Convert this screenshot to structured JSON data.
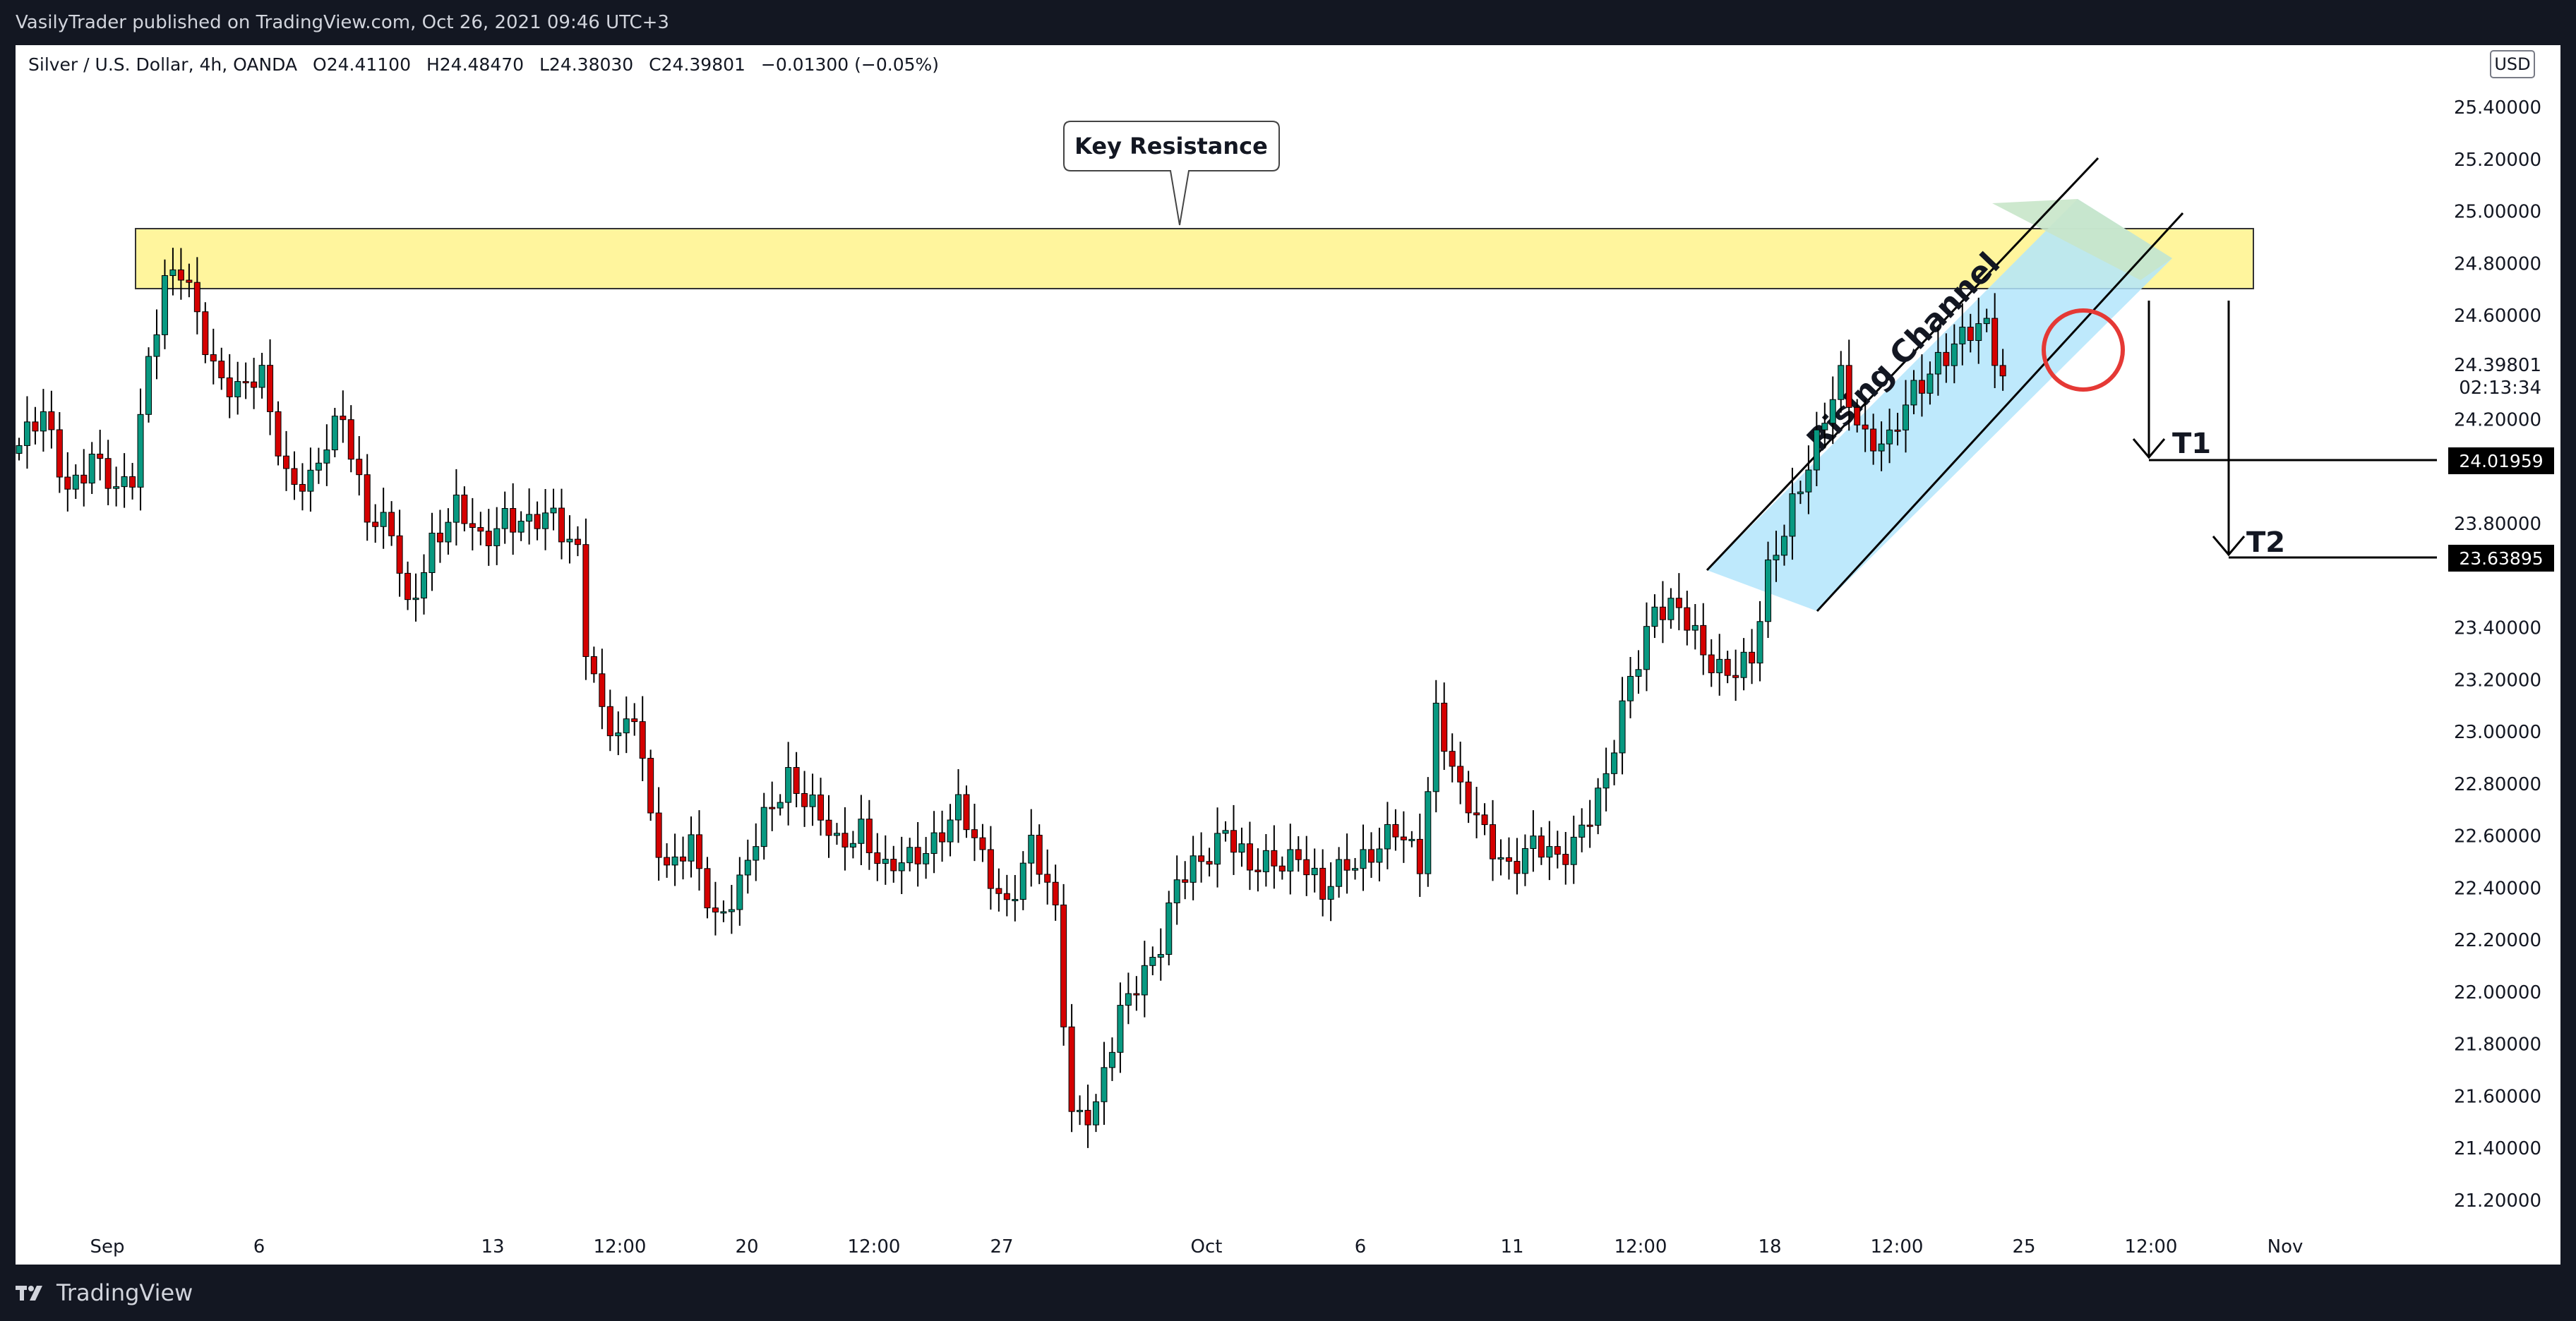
{
  "publish_line": "VasilyTrader published on TradingView.com, Oct 26, 2021 09:46 UTC+3",
  "footer_brand": "TradingView",
  "colors": {
    "up": "#089981",
    "down": "#d50000",
    "resistance_zone": "#fff59d",
    "channel_fill": "#b3e5fc",
    "target_fill": "#c8e6c9",
    "circle": "#e53935"
  },
  "chart_data": {
    "type": "candlestick",
    "title": "Silver / U.S. Dollar, 4h, OANDA",
    "ohlc_legend": {
      "open": "O24.41100",
      "high": "H24.48470",
      "low": "L24.38030",
      "close": "C24.39801",
      "change": "−0.01300 (−0.05%)"
    },
    "currency": "USD",
    "ylim": [
      21.1,
      25.6
    ],
    "y_ticks": [
      "25.40000",
      "25.20000",
      "25.00000",
      "24.80000",
      "24.60000",
      "24.20000",
      "23.80000",
      "23.40000",
      "23.20000",
      "23.00000",
      "22.80000",
      "22.60000",
      "22.40000",
      "22.20000",
      "22.00000",
      "21.80000",
      "21.60000",
      "21.40000",
      "21.20000"
    ],
    "x_ticks": [
      "Sep",
      "6",
      "13",
      "12:00",
      "20",
      "12:00",
      "27",
      "Oct",
      "6",
      "11",
      "12:00",
      "18",
      "12:00",
      "25",
      "12:00",
      "Nov"
    ],
    "last_price": "24.39801",
    "countdown": "02:13:34",
    "targets": [
      {
        "label": "T1",
        "price": "24.01959"
      },
      {
        "label": "T2",
        "price": "23.63895"
      }
    ],
    "annotations": {
      "resistance_label": "Key Resistance",
      "channel_label": "Rising Channel"
    },
    "resistance_zone": [
      24.68,
      24.92
    ],
    "channel": {
      "upper_start": [
        23.55,
        23.55
      ],
      "upper_end": [
        25.2,
        25.2
      ],
      "lower_start": [
        23.35,
        23.35
      ],
      "lower_end": [
        24.99,
        24.99
      ]
    },
    "waypoints": [
      [
        0,
        24.1
      ],
      [
        3,
        24.2
      ],
      [
        6,
        23.95
      ],
      [
        9,
        24.05
      ],
      [
        12,
        23.9
      ],
      [
        14,
        24.0
      ],
      [
        16,
        24.45
      ],
      [
        18,
        24.72
      ],
      [
        20,
        24.75
      ],
      [
        22,
        24.6
      ],
      [
        24,
        24.42
      ],
      [
        27,
        24.3
      ],
      [
        30,
        24.35
      ],
      [
        33,
        24.0
      ],
      [
        36,
        23.95
      ],
      [
        40,
        24.22
      ],
      [
        43,
        23.85
      ],
      [
        46,
        23.75
      ],
      [
        48,
        23.45
      ],
      [
        51,
        23.75
      ],
      [
        54,
        23.85
      ],
      [
        57,
        23.72
      ],
      [
        60,
        23.85
      ],
      [
        63,
        23.78
      ],
      [
        66,
        23.82
      ],
      [
        69,
        23.72
      ],
      [
        70,
        23.35
      ],
      [
        72,
        23.05
      ],
      [
        74,
        22.95
      ],
      [
        76,
        23.1
      ],
      [
        78,
        22.7
      ],
      [
        80,
        22.45
      ],
      [
        83,
        22.55
      ],
      [
        86,
        22.3
      ],
      [
        89,
        22.4
      ],
      [
        92,
        22.65
      ],
      [
        95,
        22.85
      ],
      [
        98,
        22.7
      ],
      [
        101,
        22.55
      ],
      [
        104,
        22.65
      ],
      [
        107,
        22.45
      ],
      [
        110,
        22.5
      ],
      [
        113,
        22.6
      ],
      [
        116,
        22.7
      ],
      [
        119,
        22.5
      ],
      [
        122,
        22.35
      ],
      [
        125,
        22.55
      ],
      [
        128,
        22.3
      ],
      [
        130,
        21.55
      ],
      [
        133,
        21.55
      ],
      [
        136,
        21.9
      ],
      [
        138,
        22.05
      ],
      [
        141,
        22.2
      ],
      [
        143,
        22.4
      ],
      [
        146,
        22.5
      ],
      [
        149,
        22.65
      ],
      [
        152,
        22.45
      ],
      [
        155,
        22.5
      ],
      [
        158,
        22.55
      ],
      [
        161,
        22.35
      ],
      [
        164,
        22.5
      ],
      [
        167,
        22.55
      ],
      [
        170,
        22.6
      ],
      [
        173,
        22.5
      ],
      [
        175,
        23.1
      ],
      [
        178,
        22.75
      ],
      [
        181,
        22.6
      ],
      [
        184,
        22.5
      ],
      [
        187,
        22.55
      ],
      [
        190,
        22.5
      ],
      [
        193,
        22.65
      ],
      [
        196,
        22.8
      ],
      [
        199,
        23.2
      ],
      [
        202,
        23.5
      ],
      [
        205,
        23.45
      ],
      [
        208,
        23.3
      ],
      [
        211,
        23.25
      ],
      [
        214,
        23.25
      ],
      [
        216,
        23.6
      ],
      [
        219,
        23.9
      ],
      [
        222,
        24.1
      ],
      [
        225,
        24.35
      ],
      [
        228,
        24.15
      ],
      [
        231,
        24.1
      ],
      [
        234,
        24.3
      ],
      [
        237,
        24.45
      ],
      [
        240,
        24.5
      ],
      [
        243,
        24.55
      ],
      [
        245,
        24.38
      ]
    ]
  }
}
